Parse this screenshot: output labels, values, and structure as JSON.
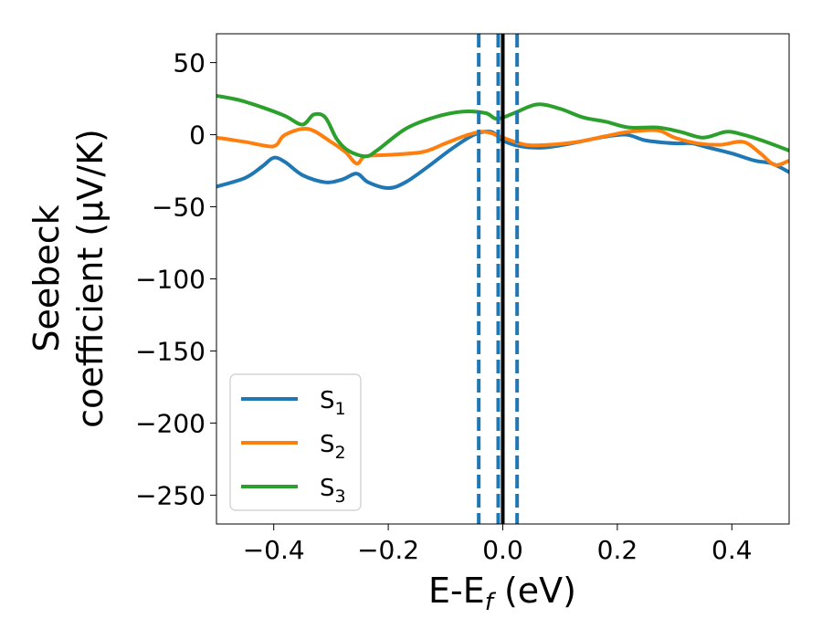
{
  "chart_data": {
    "type": "line",
    "title": "",
    "xlabel": {
      "main": "E-E",
      "sub": "f",
      "unit": " (eV)"
    },
    "ylabel": {
      "line1": "Seebeck",
      "line2": "coefficient  (μV/K)"
    },
    "xlim": [
      -0.5,
      0.5
    ],
    "ylim": [
      -270,
      70
    ],
    "xticks": [
      -0.4,
      -0.2,
      0.0,
      0.2,
      0.4
    ],
    "xtick_labels": [
      "−0.4",
      "−0.2",
      "0.0",
      "0.2",
      "0.4"
    ],
    "yticks": [
      50,
      0,
      -50,
      -100,
      -150,
      -200,
      -250
    ],
    "ytick_labels": [
      "50",
      "0",
      "−50",
      "−100",
      "−150",
      "−200",
      "−250"
    ],
    "legend_position": "lower-left",
    "vlines": [
      {
        "x": 0.0,
        "style": "solid",
        "color": "#000000"
      },
      {
        "x": -0.042,
        "style": "dashed",
        "color": "#1f77b4"
      },
      {
        "x": -0.008,
        "style": "dashed",
        "color": "#1f77b4"
      },
      {
        "x": 0.025,
        "style": "dashed",
        "color": "#1f77b4"
      }
    ],
    "series": [
      {
        "name": "S",
        "sub": "1",
        "color": "#1f77b4",
        "x": [
          -0.5,
          -0.45,
          -0.42,
          -0.4,
          -0.38,
          -0.35,
          -0.31,
          -0.28,
          -0.255,
          -0.235,
          -0.2,
          -0.17,
          -0.13,
          -0.09,
          -0.05,
          -0.02,
          0.0,
          0.03,
          0.07,
          0.12,
          0.17,
          0.215,
          0.25,
          0.3,
          0.33,
          0.36,
          0.4,
          0.44,
          0.47,
          0.5
        ],
        "y": [
          -36,
          -30,
          -22,
          -16,
          -19,
          -28,
          -33,
          -31,
          -27,
          -33,
          -37,
          -33,
          -22,
          -10,
          0,
          2,
          -4,
          -8,
          -9,
          -6,
          -2,
          0,
          -4,
          -6,
          -6,
          -9,
          -13,
          -18,
          -20,
          -26
        ]
      },
      {
        "name": "S",
        "sub": "2",
        "color": "#ff7f0e",
        "x": [
          -0.5,
          -0.45,
          -0.41,
          -0.395,
          -0.38,
          -0.34,
          -0.3,
          -0.275,
          -0.255,
          -0.24,
          -0.2,
          -0.14,
          -0.1,
          -0.06,
          -0.03,
          0.0,
          0.04,
          0.08,
          0.13,
          0.18,
          0.22,
          0.27,
          0.3,
          0.34,
          0.38,
          0.42,
          0.45,
          0.475,
          0.5
        ],
        "y": [
          -2,
          -5,
          -8,
          -7,
          0,
          4,
          -5,
          -12,
          -20,
          -15,
          -14,
          -12,
          -6,
          0,
          2,
          -2,
          -7,
          -7,
          -5,
          -1,
          2,
          3,
          -2,
          -6,
          -7,
          -5,
          -13,
          -21,
          -18
        ]
      },
      {
        "name": "S",
        "sub": "3",
        "color": "#2ca02c",
        "x": [
          -0.5,
          -0.46,
          -0.42,
          -0.38,
          -0.35,
          -0.33,
          -0.31,
          -0.29,
          -0.27,
          -0.24,
          -0.22,
          -0.17,
          -0.12,
          -0.07,
          -0.03,
          -0.01,
          0.02,
          0.06,
          0.1,
          0.14,
          0.18,
          0.22,
          0.27,
          0.31,
          0.35,
          0.39,
          0.42,
          0.46,
          0.5
        ],
        "y": [
          27,
          24,
          19,
          13,
          7,
          14,
          12,
          -3,
          -11,
          -15,
          -11,
          4,
          12,
          16,
          15,
          11,
          15,
          21,
          18,
          12,
          9,
          5,
          5,
          2,
          -2,
          2,
          0,
          -5,
          -11
        ]
      }
    ]
  }
}
